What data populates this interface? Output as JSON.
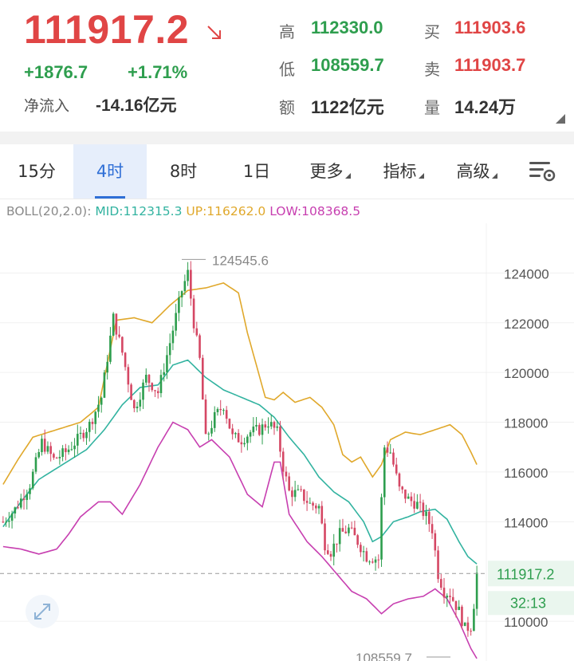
{
  "quote": {
    "price": "111917.2",
    "change": "+1876.7",
    "change_pct": "+1.71%",
    "net_inflow_label": "净流入",
    "net_inflow_value": "-14.16亿元",
    "high_label": "高",
    "high_value": "112330.0",
    "low_label": "低",
    "low_value": "108559.7",
    "amount_label": "额",
    "amount_value": "1122亿元",
    "bid_label": "买",
    "bid_value": "111903.6",
    "ask_label": "卖",
    "ask_value": "111903.7",
    "volume_label": "量",
    "volume_value": "14.24万",
    "up_color": "#2e9e4e",
    "down_color": "#e04545"
  },
  "tabs": [
    {
      "label": "15分"
    },
    {
      "label": "4时",
      "active": true
    },
    {
      "label": "8时"
    },
    {
      "label": "1日"
    },
    {
      "label": "更多"
    },
    {
      "label": "指标"
    },
    {
      "label": "高级"
    }
  ],
  "indicator": {
    "name": "BOLL(20,2.0):",
    "mid": "MID:112315.3",
    "up": "UP:116262.0",
    "low": "LOW:108368.5"
  },
  "chart_data": {
    "type": "candlestick",
    "y_ticks": [
      "124000",
      "122000",
      "120000",
      "118000",
      "116000",
      "114000",
      "110000"
    ],
    "ylim": [
      108400,
      126000
    ],
    "max_annotation": "124545.6",
    "min_annotation": "108559.7",
    "last_price_label": "111917.2",
    "countdown_label": "32:13",
    "colors": {
      "up": "#2e9e4e",
      "down": "#d54764",
      "mid": "#32b3a0",
      "upper": "#e0a82b",
      "lower": "#c73fb0",
      "grid": "#f0f0f0"
    },
    "anchors": [
      [
        0,
        114000
      ],
      [
        4,
        114500
      ],
      [
        9,
        115500
      ],
      [
        13,
        117200
      ],
      [
        17,
        116500
      ],
      [
        21,
        116800
      ],
      [
        25,
        117300
      ],
      [
        29,
        117900
      ],
      [
        33,
        119000
      ],
      [
        37,
        122200
      ],
      [
        40,
        120800
      ],
      [
        44,
        118500
      ],
      [
        48,
        119800
      ],
      [
        52,
        119200
      ],
      [
        56,
        121200
      ],
      [
        60,
        123300
      ],
      [
        62,
        124000
      ],
      [
        64,
        122000
      ],
      [
        66,
        120500
      ],
      [
        68,
        117300
      ],
      [
        71,
        118200
      ],
      [
        74,
        118700
      ],
      [
        77,
        117400
      ],
      [
        80,
        117300
      ],
      [
        83,
        117600
      ],
      [
        86,
        117700
      ],
      [
        89,
        118000
      ],
      [
        92,
        117600
      ],
      [
        94,
        116200
      ],
      [
        96,
        115200
      ],
      [
        100,
        115100
      ],
      [
        103,
        114700
      ],
      [
        106,
        114600
      ],
      [
        108,
        113100
      ],
      [
        110,
        112800
      ],
      [
        113,
        113500
      ],
      [
        116,
        113700
      ],
      [
        119,
        113200
      ],
      [
        122,
        112600
      ],
      [
        126,
        112500
      ],
      [
        127,
        114900
      ],
      [
        128,
        117000
      ],
      [
        130,
        116800
      ],
      [
        133,
        115300
      ],
      [
        136,
        114900
      ],
      [
        139,
        114700
      ],
      [
        142,
        114200
      ],
      [
        144,
        113700
      ],
      [
        146,
        111900
      ],
      [
        148,
        111200
      ],
      [
        150,
        111100
      ],
      [
        153,
        110400
      ],
      [
        155,
        109700
      ],
      [
        157,
        109800
      ],
      [
        158,
        110700
      ],
      [
        159,
        111917
      ]
    ],
    "upper_anchors": [
      [
        0,
        115500
      ],
      [
        5,
        116500
      ],
      [
        10,
        117400
      ],
      [
        18,
        117700
      ],
      [
        26,
        118000
      ],
      [
        32,
        118600
      ],
      [
        38,
        122100
      ],
      [
        44,
        122200
      ],
      [
        50,
        122000
      ],
      [
        56,
        122700
      ],
      [
        62,
        123300
      ],
      [
        68,
        123400
      ],
      [
        74,
        123600
      ],
      [
        79,
        123200
      ],
      [
        82,
        121600
      ],
      [
        88,
        119000
      ],
      [
        91,
        118900
      ],
      [
        94,
        119200
      ],
      [
        98,
        118800
      ],
      [
        103,
        119000
      ],
      [
        107,
        118600
      ],
      [
        111,
        117900
      ],
      [
        114,
        116700
      ],
      [
        117,
        116400
      ],
      [
        120,
        116600
      ],
      [
        124,
        115800
      ],
      [
        127,
        116300
      ],
      [
        130,
        117300
      ],
      [
        135,
        117600
      ],
      [
        140,
        117500
      ],
      [
        145,
        117700
      ],
      [
        150,
        117900
      ],
      [
        154,
        117500
      ],
      [
        157,
        116800
      ],
      [
        159,
        116300
      ]
    ],
    "mid_anchors": [
      [
        0,
        113800
      ],
      [
        6,
        114800
      ],
      [
        12,
        115700
      ],
      [
        20,
        116300
      ],
      [
        28,
        116900
      ],
      [
        34,
        117700
      ],
      [
        40,
        118700
      ],
      [
        46,
        119400
      ],
      [
        52,
        119500
      ],
      [
        57,
        120300
      ],
      [
        62,
        120500
      ],
      [
        68,
        119800
      ],
      [
        74,
        119300
      ],
      [
        80,
        119000
      ],
      [
        86,
        118700
      ],
      [
        91,
        118200
      ],
      [
        96,
        117400
      ],
      [
        101,
        116700
      ],
      [
        106,
        115800
      ],
      [
        111,
        115200
      ],
      [
        116,
        114800
      ],
      [
        121,
        114000
      ],
      [
        124,
        113200
      ],
      [
        127,
        113400
      ],
      [
        131,
        114000
      ],
      [
        136,
        114200
      ],
      [
        140,
        114400
      ],
      [
        145,
        114500
      ],
      [
        149,
        114100
      ],
      [
        153,
        113200
      ],
      [
        156,
        112600
      ],
      [
        159,
        112300
      ]
    ],
    "lower_anchors": [
      [
        0,
        113000
      ],
      [
        6,
        112900
      ],
      [
        12,
        112700
      ],
      [
        18,
        112900
      ],
      [
        22,
        113500
      ],
      [
        26,
        114200
      ],
      [
        32,
        114800
      ],
      [
        36,
        114800
      ],
      [
        40,
        114300
      ],
      [
        46,
        115500
      ],
      [
        52,
        117000
      ],
      [
        57,
        118000
      ],
      [
        62,
        117700
      ],
      [
        66,
        117000
      ],
      [
        70,
        117300
      ],
      [
        76,
        116600
      ],
      [
        82,
        115100
      ],
      [
        87,
        114600
      ],
      [
        91,
        116400
      ],
      [
        93,
        116400
      ],
      [
        96,
        114300
      ],
      [
        102,
        113200
      ],
      [
        107,
        112600
      ],
      [
        112,
        111900
      ],
      [
        117,
        111200
      ],
      [
        122,
        110900
      ],
      [
        127,
        110300
      ],
      [
        131,
        110700
      ],
      [
        136,
        110900
      ],
      [
        141,
        111000
      ],
      [
        145,
        111300
      ],
      [
        149,
        110900
      ],
      [
        153,
        110000
      ],
      [
        157,
        108900
      ],
      [
        159,
        108500
      ]
    ]
  }
}
